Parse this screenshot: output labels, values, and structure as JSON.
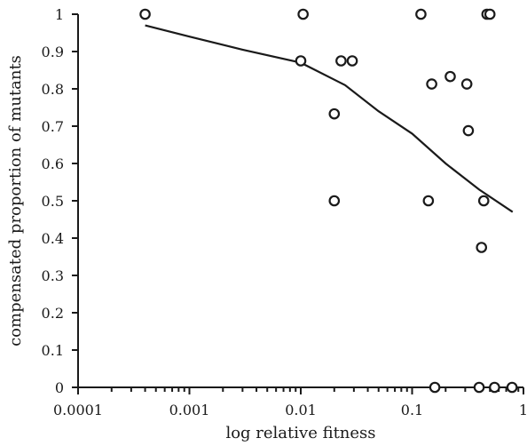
{
  "chart_data": {
    "type": "scatter",
    "title": "",
    "xlabel": "log relative fitness",
    "ylabel": "compensated proportion of mutants",
    "x_scale": "log",
    "xlim": [
      0.0001,
      1
    ],
    "ylim": [
      0,
      1
    ],
    "x_ticks": [
      {
        "value": 0.0001,
        "label": "0.0001"
      },
      {
        "value": 0.001,
        "label": "0.001"
      },
      {
        "value": 0.01,
        "label": "0.01"
      },
      {
        "value": 0.1,
        "label": "0.1"
      },
      {
        "value": 1,
        "label": "1"
      }
    ],
    "y_ticks": [
      {
        "value": 0,
        "label": "0"
      },
      {
        "value": 0.1,
        "label": "0.1"
      },
      {
        "value": 0.2,
        "label": "0.2"
      },
      {
        "value": 0.3,
        "label": "0.3"
      },
      {
        "value": 0.4,
        "label": "0.4"
      },
      {
        "value": 0.5,
        "label": "0.5"
      },
      {
        "value": 0.6,
        "label": "0.6"
      },
      {
        "value": 0.7,
        "label": "0.7"
      },
      {
        "value": 0.8,
        "label": "0.8"
      },
      {
        "value": 0.9,
        "label": "0.9"
      },
      {
        "value": 1,
        "label": "1"
      }
    ],
    "grid": false,
    "legend": "none",
    "series": [
      {
        "kind": "scatter",
        "marker": "open-circle",
        "points": [
          {
            "x": 0.0004,
            "y": 1.0
          },
          {
            "x": 0.0105,
            "y": 1.0
          },
          {
            "x": 0.12,
            "y": 1.0
          },
          {
            "x": 0.47,
            "y": 1.0
          },
          {
            "x": 0.5,
            "y": 1.0
          },
          {
            "x": 0.01,
            "y": 0.875
          },
          {
            "x": 0.023,
            "y": 0.875
          },
          {
            "x": 0.029,
            "y": 0.875
          },
          {
            "x": 0.22,
            "y": 0.833
          },
          {
            "x": 0.15,
            "y": 0.813
          },
          {
            "x": 0.31,
            "y": 0.813
          },
          {
            "x": 0.02,
            "y": 0.733
          },
          {
            "x": 0.32,
            "y": 0.688
          },
          {
            "x": 0.02,
            "y": 0.5
          },
          {
            "x": 0.14,
            "y": 0.5
          },
          {
            "x": 0.44,
            "y": 0.5
          },
          {
            "x": 0.42,
            "y": 0.375
          },
          {
            "x": 0.16,
            "y": 0.0
          },
          {
            "x": 0.4,
            "y": 0.0
          },
          {
            "x": 0.55,
            "y": 0.0
          },
          {
            "x": 0.79,
            "y": 0.0
          }
        ]
      },
      {
        "kind": "line",
        "points": [
          {
            "x": 0.0004,
            "y": 0.97
          },
          {
            "x": 0.001,
            "y": 0.94
          },
          {
            "x": 0.003,
            "y": 0.905
          },
          {
            "x": 0.01,
            "y": 0.87
          },
          {
            "x": 0.025,
            "y": 0.81
          },
          {
            "x": 0.05,
            "y": 0.74
          },
          {
            "x": 0.1,
            "y": 0.68
          },
          {
            "x": 0.2,
            "y": 0.6
          },
          {
            "x": 0.4,
            "y": 0.53
          },
          {
            "x": 0.8,
            "y": 0.47
          }
        ]
      }
    ]
  }
}
